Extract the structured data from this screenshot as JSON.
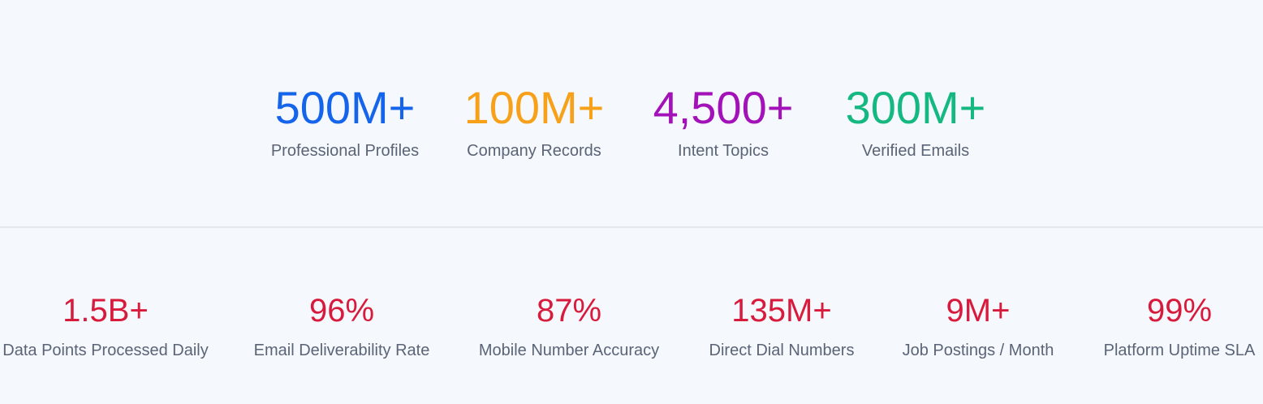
{
  "top_stats": [
    {
      "value": "500M+",
      "label": "Professional Profiles"
    },
    {
      "value": "100M+",
      "label": "Company Records"
    },
    {
      "value": "4,500+",
      "label": "Intent Topics"
    },
    {
      "value": "300M+",
      "label": "Verified Emails"
    }
  ],
  "bottom_stats": [
    {
      "value": "1.5B+",
      "label": "Data Points Processed Daily"
    },
    {
      "value": "96%",
      "label": "Email Deliverability Rate"
    },
    {
      "value": "87%",
      "label": "Mobile Number Accuracy"
    },
    {
      "value": "135M+",
      "label": "Direct Dial Numbers"
    },
    {
      "value": "9M+",
      "label": "Job Postings / Month"
    },
    {
      "value": "99%",
      "label": "Platform Uptime SLA"
    }
  ]
}
